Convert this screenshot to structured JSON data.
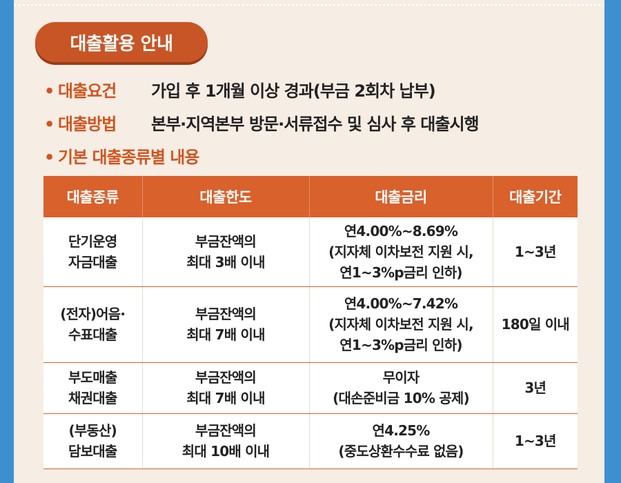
{
  "header": {
    "title": "대출활용 안내"
  },
  "info": [
    {
      "bullet": "•",
      "label": "대출요건",
      "value": "가입 후 1개월 이상 경과(부금 2회차 납부)"
    },
    {
      "bullet": "•",
      "label": "대출방법",
      "value": "본부·지역본부 방문·서류접수 및 심사 후 대출시행"
    },
    {
      "bullet": "•",
      "label": "기본 대출종류별 내용",
      "value": ""
    }
  ],
  "table": {
    "headers": [
      "대출종류",
      "대출한도",
      "대출금리",
      "대출기간"
    ],
    "rows": [
      {
        "type": [
          "단기운영",
          "자금대출"
        ],
        "limit": [
          "부금잔액의",
          "최대 3배 이내"
        ],
        "rate": [
          "연4.00%~8.69%",
          "(지자체 이차보전 지원 시,",
          "연1~3%p금리 인하)"
        ],
        "period": [
          "1~3년"
        ]
      },
      {
        "type": [
          "(전자)어음·",
          "수표대출"
        ],
        "limit": [
          "부금잔액의",
          "최대 7배 이내"
        ],
        "rate": [
          "연4.00%~7.42%",
          "(지자체 이차보전 지원 시,",
          "연1~3%p금리 인하)"
        ],
        "period": [
          "180일 이내"
        ]
      },
      {
        "type": [
          "부도매출",
          "채권대출"
        ],
        "limit": [
          "부금잔액의",
          "최대 7배 이내"
        ],
        "rate": [
          "무이자",
          "(대손준비금 10% 공제)"
        ],
        "period": [
          "3년"
        ]
      },
      {
        "type": [
          "(부동산)",
          "담보대출"
        ],
        "limit": [
          "부금잔액의",
          "최대 10배 이내"
        ],
        "rate": [
          "연4.25%",
          "(중도상환수수료 없음)"
        ],
        "period": [
          "1~3년"
        ]
      }
    ]
  }
}
